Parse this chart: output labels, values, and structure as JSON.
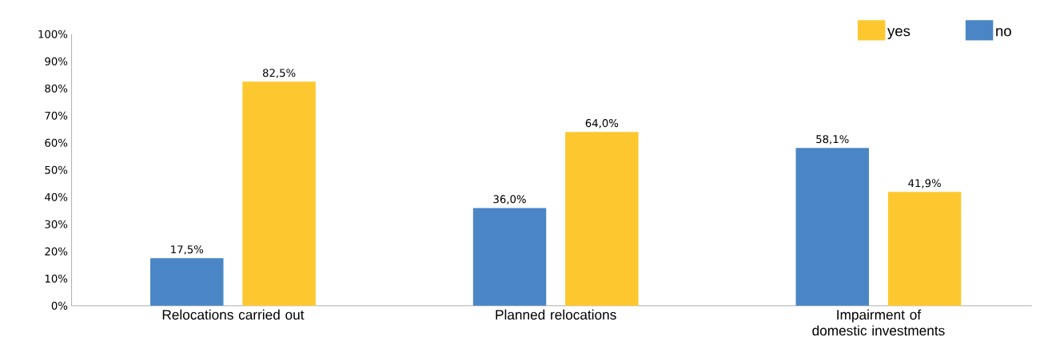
{
  "chart_data": {
    "type": "bar",
    "categories": [
      "Relocations carried out",
      "Planned relocations",
      "Impairment of domestic investments"
    ],
    "series": [
      {
        "name": "no",
        "color": "#4a86c5",
        "values": [
          17.5,
          36.0,
          58.1
        ],
        "value_labels": [
          "17,5%",
          "36,0%",
          "58,1%"
        ]
      },
      {
        "name": "yes",
        "color": "#fdc82f",
        "values": [
          82.5,
          64.0,
          41.9
        ],
        "value_labels": [
          "82,5%",
          "64,0%",
          "41,9%"
        ]
      }
    ],
    "ylim": [
      0,
      100
    ],
    "yticks": [
      {
        "value": 0,
        "label": "0%"
      },
      {
        "value": 10,
        "label": "10%"
      },
      {
        "value": 20,
        "label": "20%"
      },
      {
        "value": 30,
        "label": "30%"
      },
      {
        "value": 40,
        "label": "40%"
      },
      {
        "value": 50,
        "label": "50%"
      },
      {
        "value": 60,
        "label": "60%"
      },
      {
        "value": 70,
        "label": "70%"
      },
      {
        "value": 80,
        "label": "80%"
      },
      {
        "value": 90,
        "label": "90%"
      },
      {
        "value": 100,
        "label": "100%"
      }
    ],
    "grid": false,
    "legend": "top right"
  }
}
